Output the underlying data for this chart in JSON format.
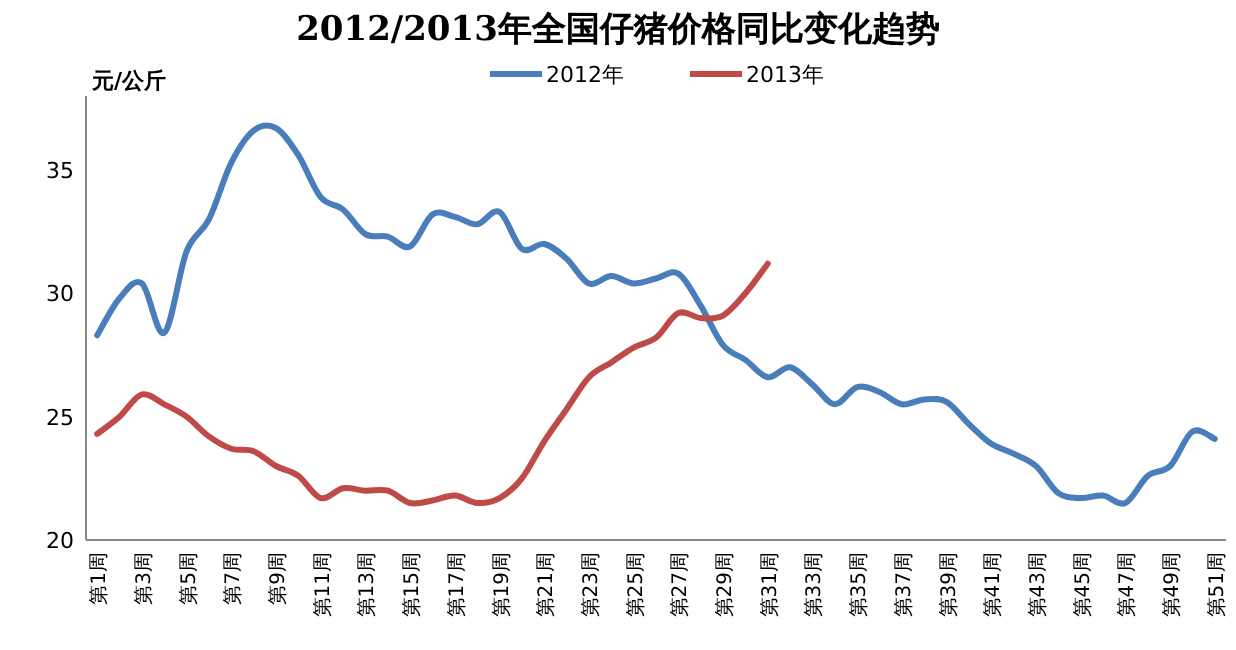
{
  "chart_data": {
    "type": "line",
    "title": "2012/2013年全国仔猪价格同比变化趋势",
    "ylabel": "元/公斤",
    "categories": [
      "第1周",
      null,
      "第3周",
      null,
      "第5周",
      null,
      "第7周",
      null,
      "第9周",
      null,
      "第11周",
      null,
      "第13周",
      null,
      "第15周",
      null,
      "第17周",
      null,
      "第19周",
      null,
      "第21周",
      null,
      "第23周",
      null,
      "第25周",
      null,
      "第27周",
      null,
      "第29周",
      null,
      "第31周",
      null,
      "第33周",
      null,
      "第35周",
      null,
      "第37周",
      null,
      "第39周",
      null,
      "第41周",
      null,
      "第43周",
      null,
      "第45周",
      null,
      "第47周",
      null,
      "第49周",
      null,
      "第51周"
    ],
    "series": [
      {
        "name": "2012年",
        "color": "#4a7ebb",
        "values": [
          28.3,
          29.8,
          30.4,
          28.4,
          31.7,
          33.0,
          35.3,
          36.6,
          36.7,
          35.6,
          33.9,
          33.4,
          32.4,
          32.3,
          31.9,
          33.2,
          33.1,
          32.8,
          33.3,
          31.8,
          32.0,
          31.4,
          30.4,
          30.7,
          30.4,
          30.6,
          30.8,
          29.5,
          27.9,
          27.3,
          26.6,
          27.0,
          26.3,
          25.5,
          26.2,
          26.0,
          25.5,
          25.7,
          25.6,
          24.7,
          23.9,
          23.5,
          23.0,
          21.9,
          21.7,
          21.8,
          21.5,
          22.6,
          23.0,
          24.4,
          24.1
        ]
      },
      {
        "name": "2013年",
        "color": "#be4b48",
        "values": [
          24.3,
          25.0,
          25.9,
          25.5,
          25.0,
          24.2,
          23.7,
          23.6,
          23.0,
          22.6,
          21.7,
          22.1,
          22.0,
          22.0,
          21.5,
          21.6,
          21.8,
          21.5,
          21.7,
          22.5,
          24.0,
          25.3,
          26.6,
          27.2,
          27.8,
          28.2,
          29.2,
          29.0,
          29.1,
          30.0,
          31.2,
          null,
          null,
          null,
          null,
          null,
          null,
          null,
          null,
          null,
          null,
          null,
          null,
          null,
          null,
          null,
          null,
          null,
          null,
          null,
          null
        ]
      }
    ],
    "ylim": [
      20,
      38
    ],
    "yticks": [
      20,
      25,
      30,
      35
    ],
    "grid": false,
    "legend": "top",
    "marker": "none",
    "line_style": "solid"
  }
}
